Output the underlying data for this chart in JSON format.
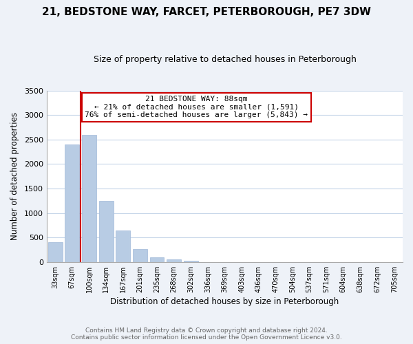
{
  "title": "21, BEDSTONE WAY, FARCET, PETERBOROUGH, PE7 3DW",
  "subtitle": "Size of property relative to detached houses in Peterborough",
  "xlabel": "Distribution of detached houses by size in Peterborough",
  "ylabel": "Number of detached properties",
  "bar_labels": [
    "33sqm",
    "67sqm",
    "100sqm",
    "134sqm",
    "167sqm",
    "201sqm",
    "235sqm",
    "268sqm",
    "302sqm",
    "336sqm",
    "369sqm",
    "403sqm",
    "436sqm",
    "470sqm",
    "504sqm",
    "537sqm",
    "571sqm",
    "604sqm",
    "638sqm",
    "672sqm",
    "705sqm"
  ],
  "bar_values": [
    400,
    2400,
    2600,
    1250,
    640,
    260,
    100,
    50,
    20,
    0,
    0,
    0,
    0,
    0,
    0,
    0,
    0,
    0,
    0,
    0,
    0
  ],
  "bar_color": "#b8cce4",
  "bar_edge_color": "#a0b8d8",
  "marker_line_color": "#cc0000",
  "ylim": [
    0,
    3500
  ],
  "yticks": [
    0,
    500,
    1000,
    1500,
    2000,
    2500,
    3000,
    3500
  ],
  "annotation_title": "21 BEDSTONE WAY: 88sqm",
  "annotation_line1": "← 21% of detached houses are smaller (1,591)",
  "annotation_line2": "76% of semi-detached houses are larger (5,843) →",
  "annotation_box_color": "#ffffff",
  "annotation_box_edge": "#cc0000",
  "footer_line1": "Contains HM Land Registry data © Crown copyright and database right 2024.",
  "footer_line2": "Contains public sector information licensed under the Open Government Licence v3.0.",
  "bg_color": "#eef2f8",
  "plot_bg_color": "#ffffff",
  "grid_color": "#c5d5e8"
}
